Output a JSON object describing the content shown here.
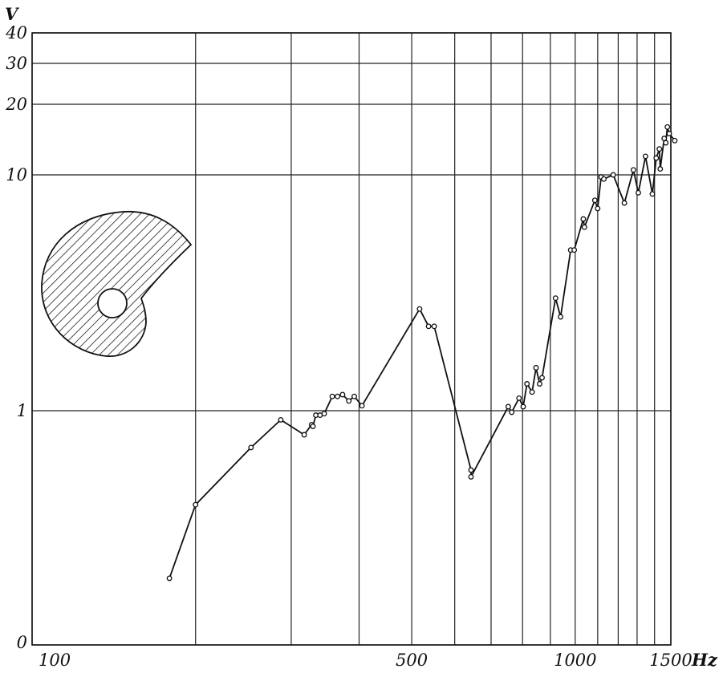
{
  "chart_data": {
    "type": "line",
    "title": "",
    "xlabel": "Hz",
    "ylabel": "V",
    "x_scale": "log",
    "x_ticks": [
      {
        "value": 100,
        "label": "100"
      },
      {
        "value": 500,
        "label": "500"
      },
      {
        "value": 1000,
        "label": "1000"
      },
      {
        "value": 1500,
        "label": "1500"
      }
    ],
    "y_ticks": [
      {
        "value": 0,
        "label": "0"
      },
      {
        "value": 1,
        "label": "1"
      },
      {
        "value": 10,
        "label": "10"
      },
      {
        "value": 20,
        "label": "20"
      },
      {
        "value": 30,
        "label": "30"
      },
      {
        "value": 40,
        "label": "40"
      }
    ],
    "x_gridlines": [
      100,
      200,
      300,
      400,
      500,
      600,
      700,
      800,
      900,
      1000,
      1100,
      1200,
      1300,
      1400,
      1500
    ],
    "y_gridlines": [
      0,
      1,
      10,
      20,
      30,
      40
    ],
    "xlim": [
      100,
      1500
    ],
    "grid": true,
    "series": [
      {
        "x": [
          179,
          200,
          253,
          287,
          317,
          327,
          329,
          333,
          339,
          345,
          357,
          365,
          373,
          383,
          392,
          405,
          517,
          537,
          550,
          643,
          643,
          753,
          764,
          788,
          802,
          815,
          833,
          847,
          860,
          869,
          920,
          940,
          981,
          996,
          1035,
          1040,
          1087,
          1100,
          1116,
          1129,
          1175,
          1232,
          1280,
          1307,
          1347,
          1387,
          1410,
          1429,
          1434,
          1458,
          1468,
          1478,
          1490,
          1525
        ],
        "y": [
          0.29,
          0.53,
          0.78,
          0.94,
          0.85,
          0.91,
          0.9,
          0.97,
          0.97,
          0.98,
          1.15,
          1.15,
          1.17,
          1.1,
          1.15,
          1.05,
          2.7,
          2.28,
          2.28,
          0.67,
          0.64,
          1.04,
          0.99,
          1.13,
          1.04,
          1.3,
          1.2,
          1.52,
          1.3,
          1.38,
          3.0,
          2.5,
          4.8,
          4.8,
          6.5,
          6.0,
          7.8,
          7.2,
          9.8,
          9.6,
          10.0,
          7.6,
          10.5,
          8.4,
          12.0,
          8.3,
          11.8,
          12.9,
          10.6,
          14.3,
          13.7,
          16.0,
          15.0,
          14.0
        ]
      }
    ],
    "inset": {
      "type": "hatched-shape"
    }
  }
}
